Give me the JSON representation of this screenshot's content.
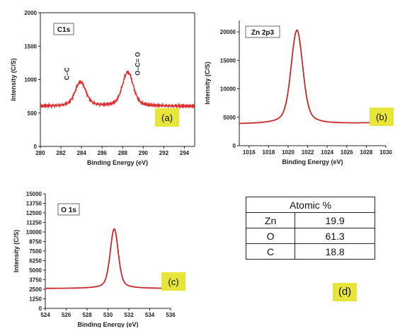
{
  "chart_data": [
    {
      "panel": "a",
      "type": "line",
      "inset_label": "C1s",
      "panel_label": "(a)",
      "xlabel": "Binding Energy (eV)",
      "ylabel": "Intensity (C/S)",
      "xlim": [
        280,
        295
      ],
      "ylim": [
        0,
        2000
      ],
      "xticks": [
        280,
        282,
        284,
        286,
        288,
        290,
        292,
        294
      ],
      "yticks": [
        0,
        500,
        1000,
        1500,
        2000
      ],
      "peaks": [
        {
          "x": 283.9,
          "y": 960,
          "label": "C–C"
        },
        {
          "x": 288.5,
          "y": 1110,
          "label": "O–C= O"
        }
      ],
      "baseline": 600,
      "color": "#e03030"
    },
    {
      "panel": "b",
      "type": "line",
      "inset_label": "Zn 2p3",
      "panel_label": "(b)",
      "xlabel": "Binding Energy (eV)",
      "ylabel": "Intensity (C/S)",
      "xlim": [
        1015,
        1030
      ],
      "ylim": [
        0,
        22000
      ],
      "xticks": [
        1016,
        1018,
        1020,
        1022,
        1024,
        1026,
        1028,
        1030
      ],
      "yticks": [
        0,
        5000,
        10000,
        15000,
        20000
      ],
      "peaks": [
        {
          "x": 1020.9,
          "y": 20300
        }
      ],
      "baseline": 3800,
      "color": "#c62828"
    },
    {
      "panel": "c",
      "type": "line",
      "inset_label": "O 1s",
      "panel_label": "(c)",
      "xlabel": "Binding Energy (eV)",
      "ylabel": "Intensity (C/S)",
      "xlim": [
        524,
        536
      ],
      "ylim": [
        0,
        15000
      ],
      "xticks": [
        524,
        526,
        528,
        530,
        532,
        534,
        536
      ],
      "yticks": [
        0,
        1250,
        2500,
        3750,
        5000,
        6250,
        7500,
        8750,
        10000,
        11250,
        12500,
        13750,
        15000
      ],
      "peaks": [
        {
          "x": 530.6,
          "y": 10400
        }
      ],
      "baseline": 2600,
      "color": "#c62828"
    },
    {
      "panel": "d",
      "type": "table",
      "panel_label": "(d)",
      "title": "Atomic %",
      "rows": [
        {
          "element": "Zn",
          "value": "19.9"
        },
        {
          "element": "O",
          "value": "61.3"
        },
        {
          "element": "C",
          "value": "18.8"
        }
      ]
    }
  ],
  "colors": {
    "label_box": "#e8e53a",
    "axis": "#222222"
  }
}
